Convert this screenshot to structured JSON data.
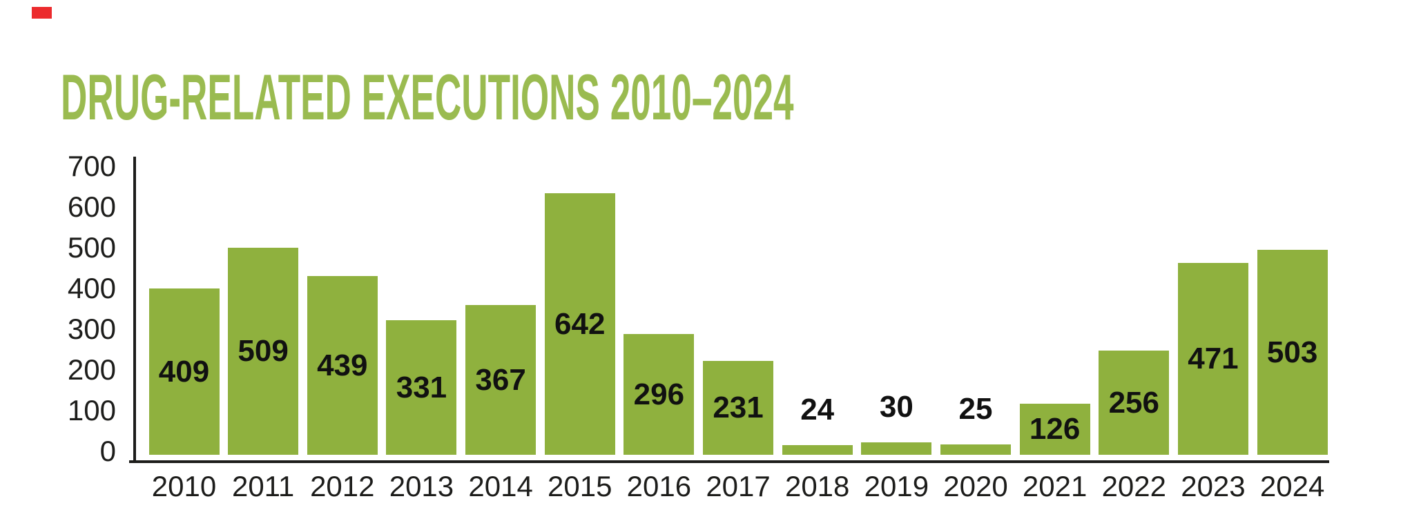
{
  "page": {
    "background": "#FFFFFF",
    "red_corner_mark_color": "#EC2B2D"
  },
  "chart_data": {
    "type": "bar",
    "title": "DRUG-RELATED EXECUTIONS 2010–2024",
    "categories": [
      "2010",
      "2011",
      "2012",
      "2013",
      "2014",
      "2015",
      "2016",
      "2017",
      "2018",
      "2019",
      "2020",
      "2021",
      "2022",
      "2023",
      "2024"
    ],
    "values": [
      409,
      509,
      439,
      331,
      367,
      642,
      296,
      231,
      24,
      30,
      25,
      126,
      256,
      471,
      503
    ],
    "bar_value_labels": [
      "409",
      "509",
      "439",
      "331",
      "367",
      "642",
      "296",
      "231",
      "24",
      "30",
      "25",
      "126",
      "256",
      "471",
      "503"
    ],
    "xlabel": "",
    "ylabel": "",
    "ylim": [
      0,
      700
    ],
    "yticks": [
      0,
      100,
      200,
      300,
      400,
      500,
      600,
      700
    ],
    "grid": false,
    "legend": false,
    "value_label_placement": "inside bar, centered; above bar when value is small",
    "colors": {
      "bar": "#8FB13E",
      "title": "#9ABB50",
      "text": "#1D1D1B",
      "axis": "#1D1D1B",
      "value_label": "#111111"
    }
  }
}
